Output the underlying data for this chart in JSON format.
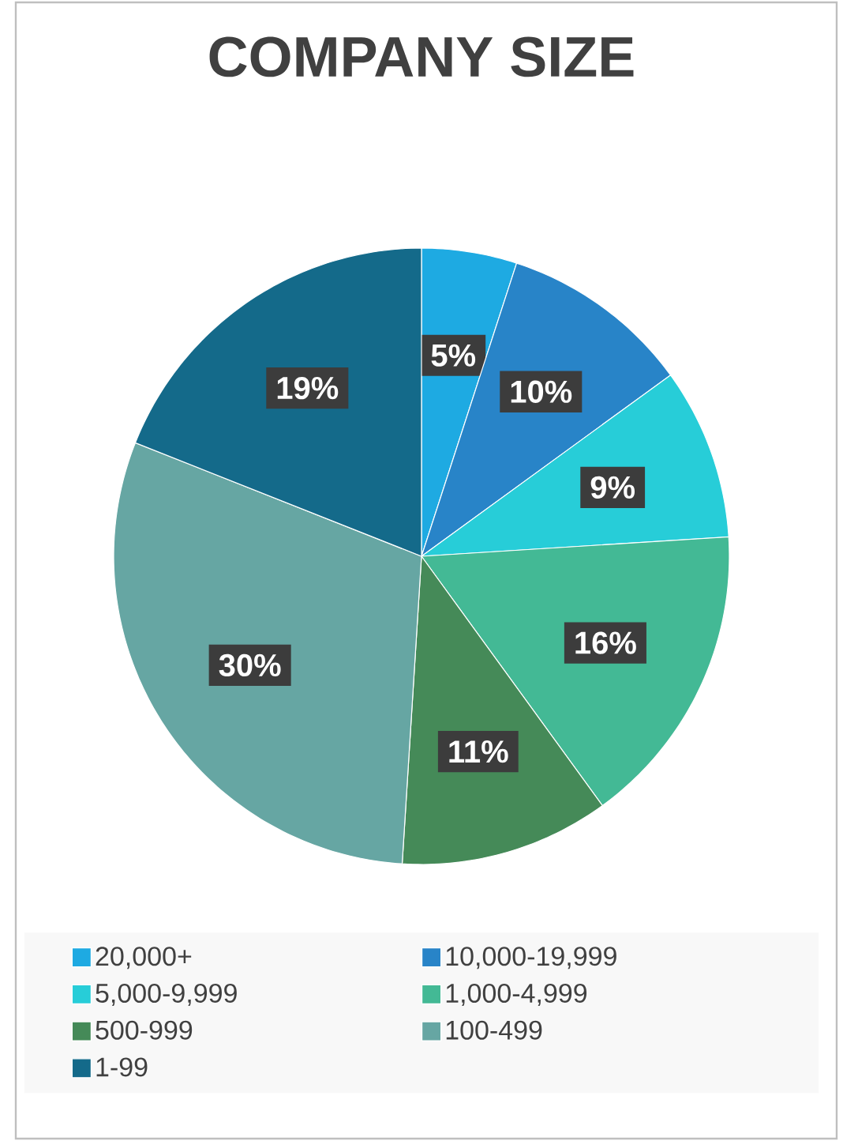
{
  "chart_data": {
    "type": "pie",
    "title": "COMPANY SIZE",
    "categories": [
      "20,000+",
      "10,000-19,999",
      "5,000-9,999",
      "1,000-4,999",
      "500-999",
      "100-499",
      "1-99"
    ],
    "values": [
      5,
      10,
      9,
      16,
      11,
      30,
      19
    ],
    "colors": [
      "#1eaae2",
      "#2884c8",
      "#27cdd8",
      "#43b995",
      "#458a58",
      "#66a6a3",
      "#146a8a"
    ],
    "value_labels": [
      "5%",
      "10%",
      "9%",
      "16%",
      "11%",
      "30%",
      "19%"
    ],
    "legend": "bottom"
  }
}
